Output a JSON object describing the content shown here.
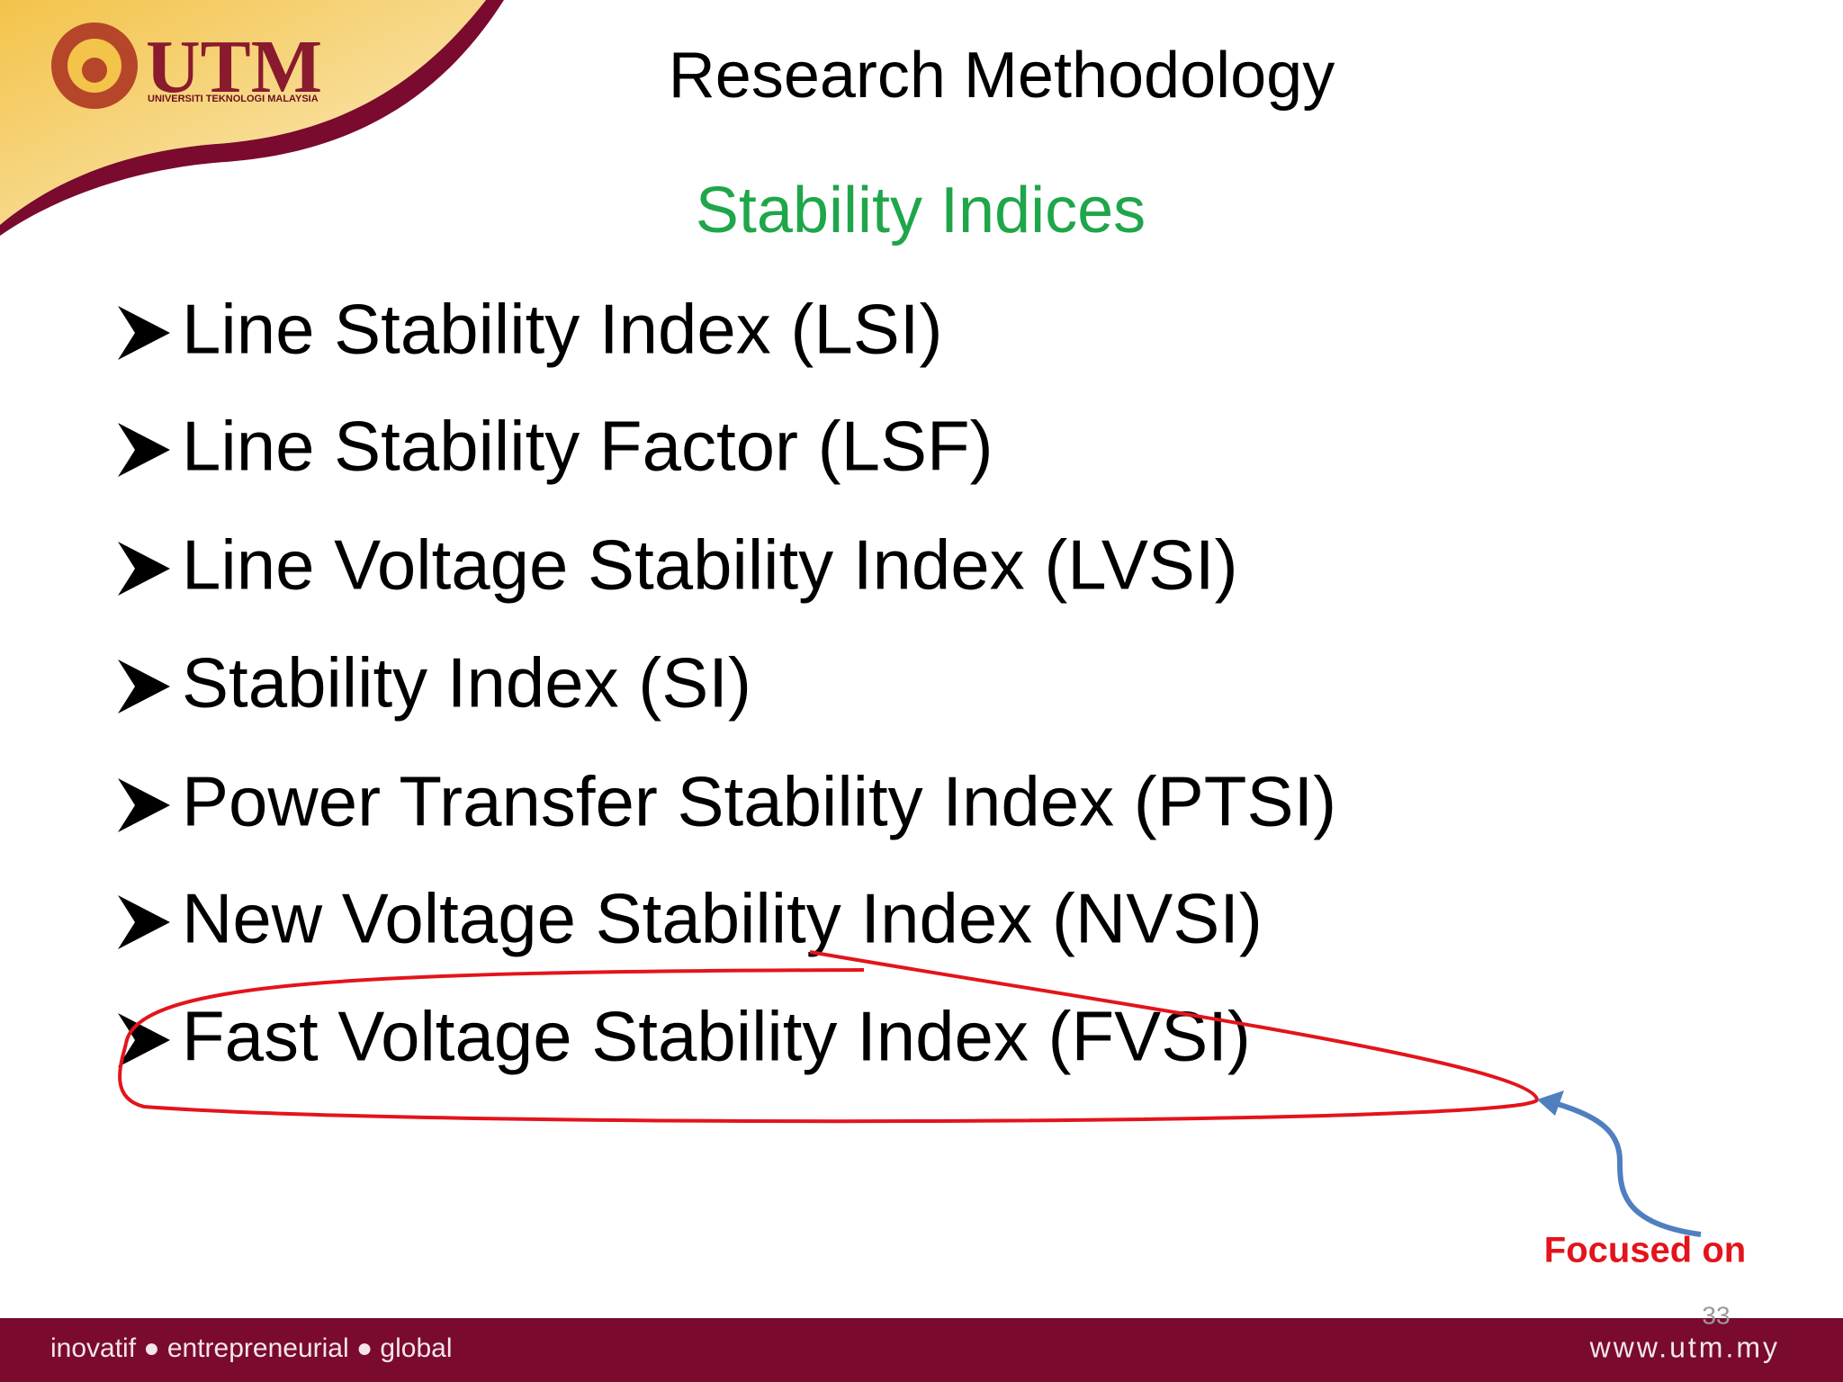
{
  "header": {
    "logo": {
      "name": "UTM",
      "subtitle": "UNIVERSITI TEKNOLOGI MALAYSIA"
    },
    "title": "Research Methodology"
  },
  "subtitle": "Stability Indices",
  "items": [
    "Line Stability Index (LSI)",
    "Line Stability Factor (LSF)",
    "Line Voltage Stability Index (LVSI)",
    "Stability Index (SI)",
    "Power Transfer Stability Index (PTSI)",
    "New Voltage Stability Index (NVSI)",
    "Fast Voltage Stability Index (FVSI)"
  ],
  "annotation": "Focused on",
  "page_number": "33",
  "footer": {
    "tagline": "inovatif ● entrepreneurial ● global",
    "url": "www.utm.my"
  }
}
